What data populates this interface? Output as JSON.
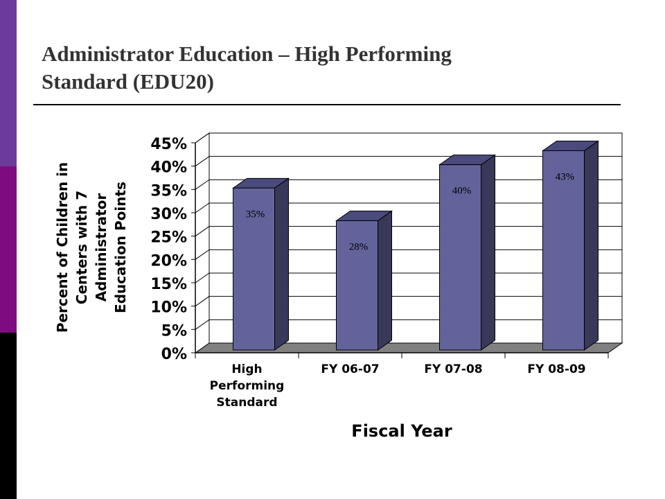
{
  "slide": {
    "title_line1": "Administrator Education – High Performing",
    "title_line2": "Standard (EDU20)"
  },
  "colors": {
    "sidebar_top": "#6b3a9b",
    "sidebar_mid": "#7e0b7f",
    "sidebar_bottom": "#000000",
    "bar_front": "#63639c",
    "bar_side": "#383858",
    "bar_top": "#4a4a7c",
    "floor": "#808080"
  },
  "chart_data": {
    "type": "bar",
    "three_d": true,
    "categories": [
      [
        "High",
        "Performing",
        "Standard"
      ],
      [
        "FY 06-07"
      ],
      [
        "FY 07-08"
      ],
      [
        "FY 08-09"
      ]
    ],
    "values": [
      35,
      28,
      40,
      43
    ],
    "data_labels": [
      "35%",
      "28%",
      "40%",
      "43%"
    ],
    "ylim": [
      0,
      45
    ],
    "yticks": [
      "0%",
      "5%",
      "10%",
      "15%",
      "20%",
      "25%",
      "30%",
      "35%",
      "40%",
      "45%"
    ],
    "xlabel": "Fiscal Year",
    "ylabel": [
      "Percent of Children in",
      "Centers with 7",
      "Administrator",
      "Education Points"
    ],
    "grid": true,
    "legend": "none"
  }
}
